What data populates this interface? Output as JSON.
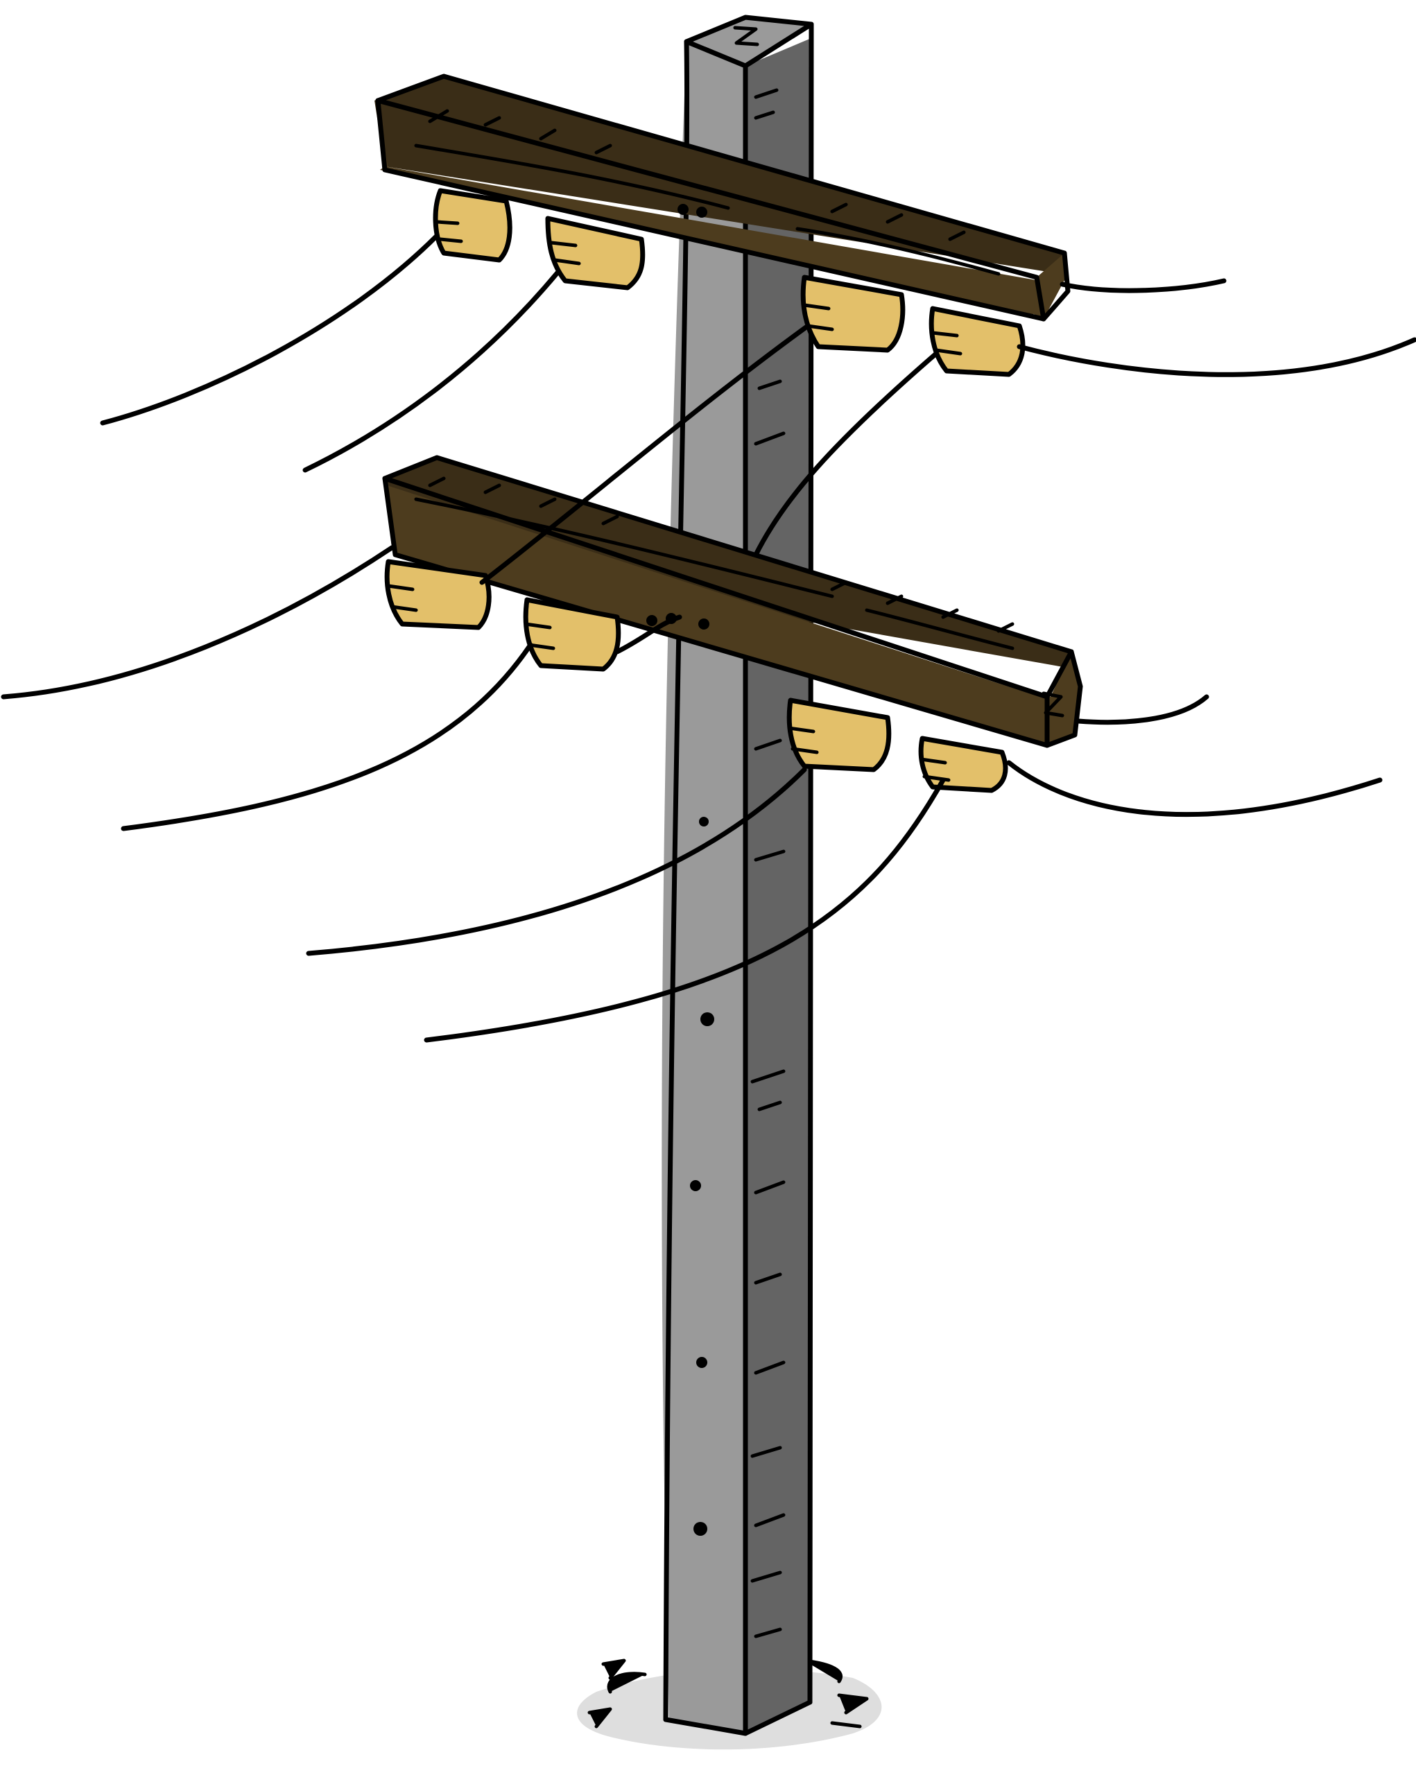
{
  "scene": {
    "subject": "utility-pole",
    "colors": {
      "background": "#ffffff",
      "outline": "#000000",
      "pole_light": "#9a9a9a",
      "pole_dark": "#646464",
      "pole_shadow": "#c9c9c9",
      "crossarm_top": "#3a2d17",
      "crossarm_front": "#4d3c1e",
      "insulator": "#e3c06a",
      "ground_shadow": "#dedede"
    },
    "crossarm_count": 2,
    "insulators_per_crossarm": 4
  }
}
